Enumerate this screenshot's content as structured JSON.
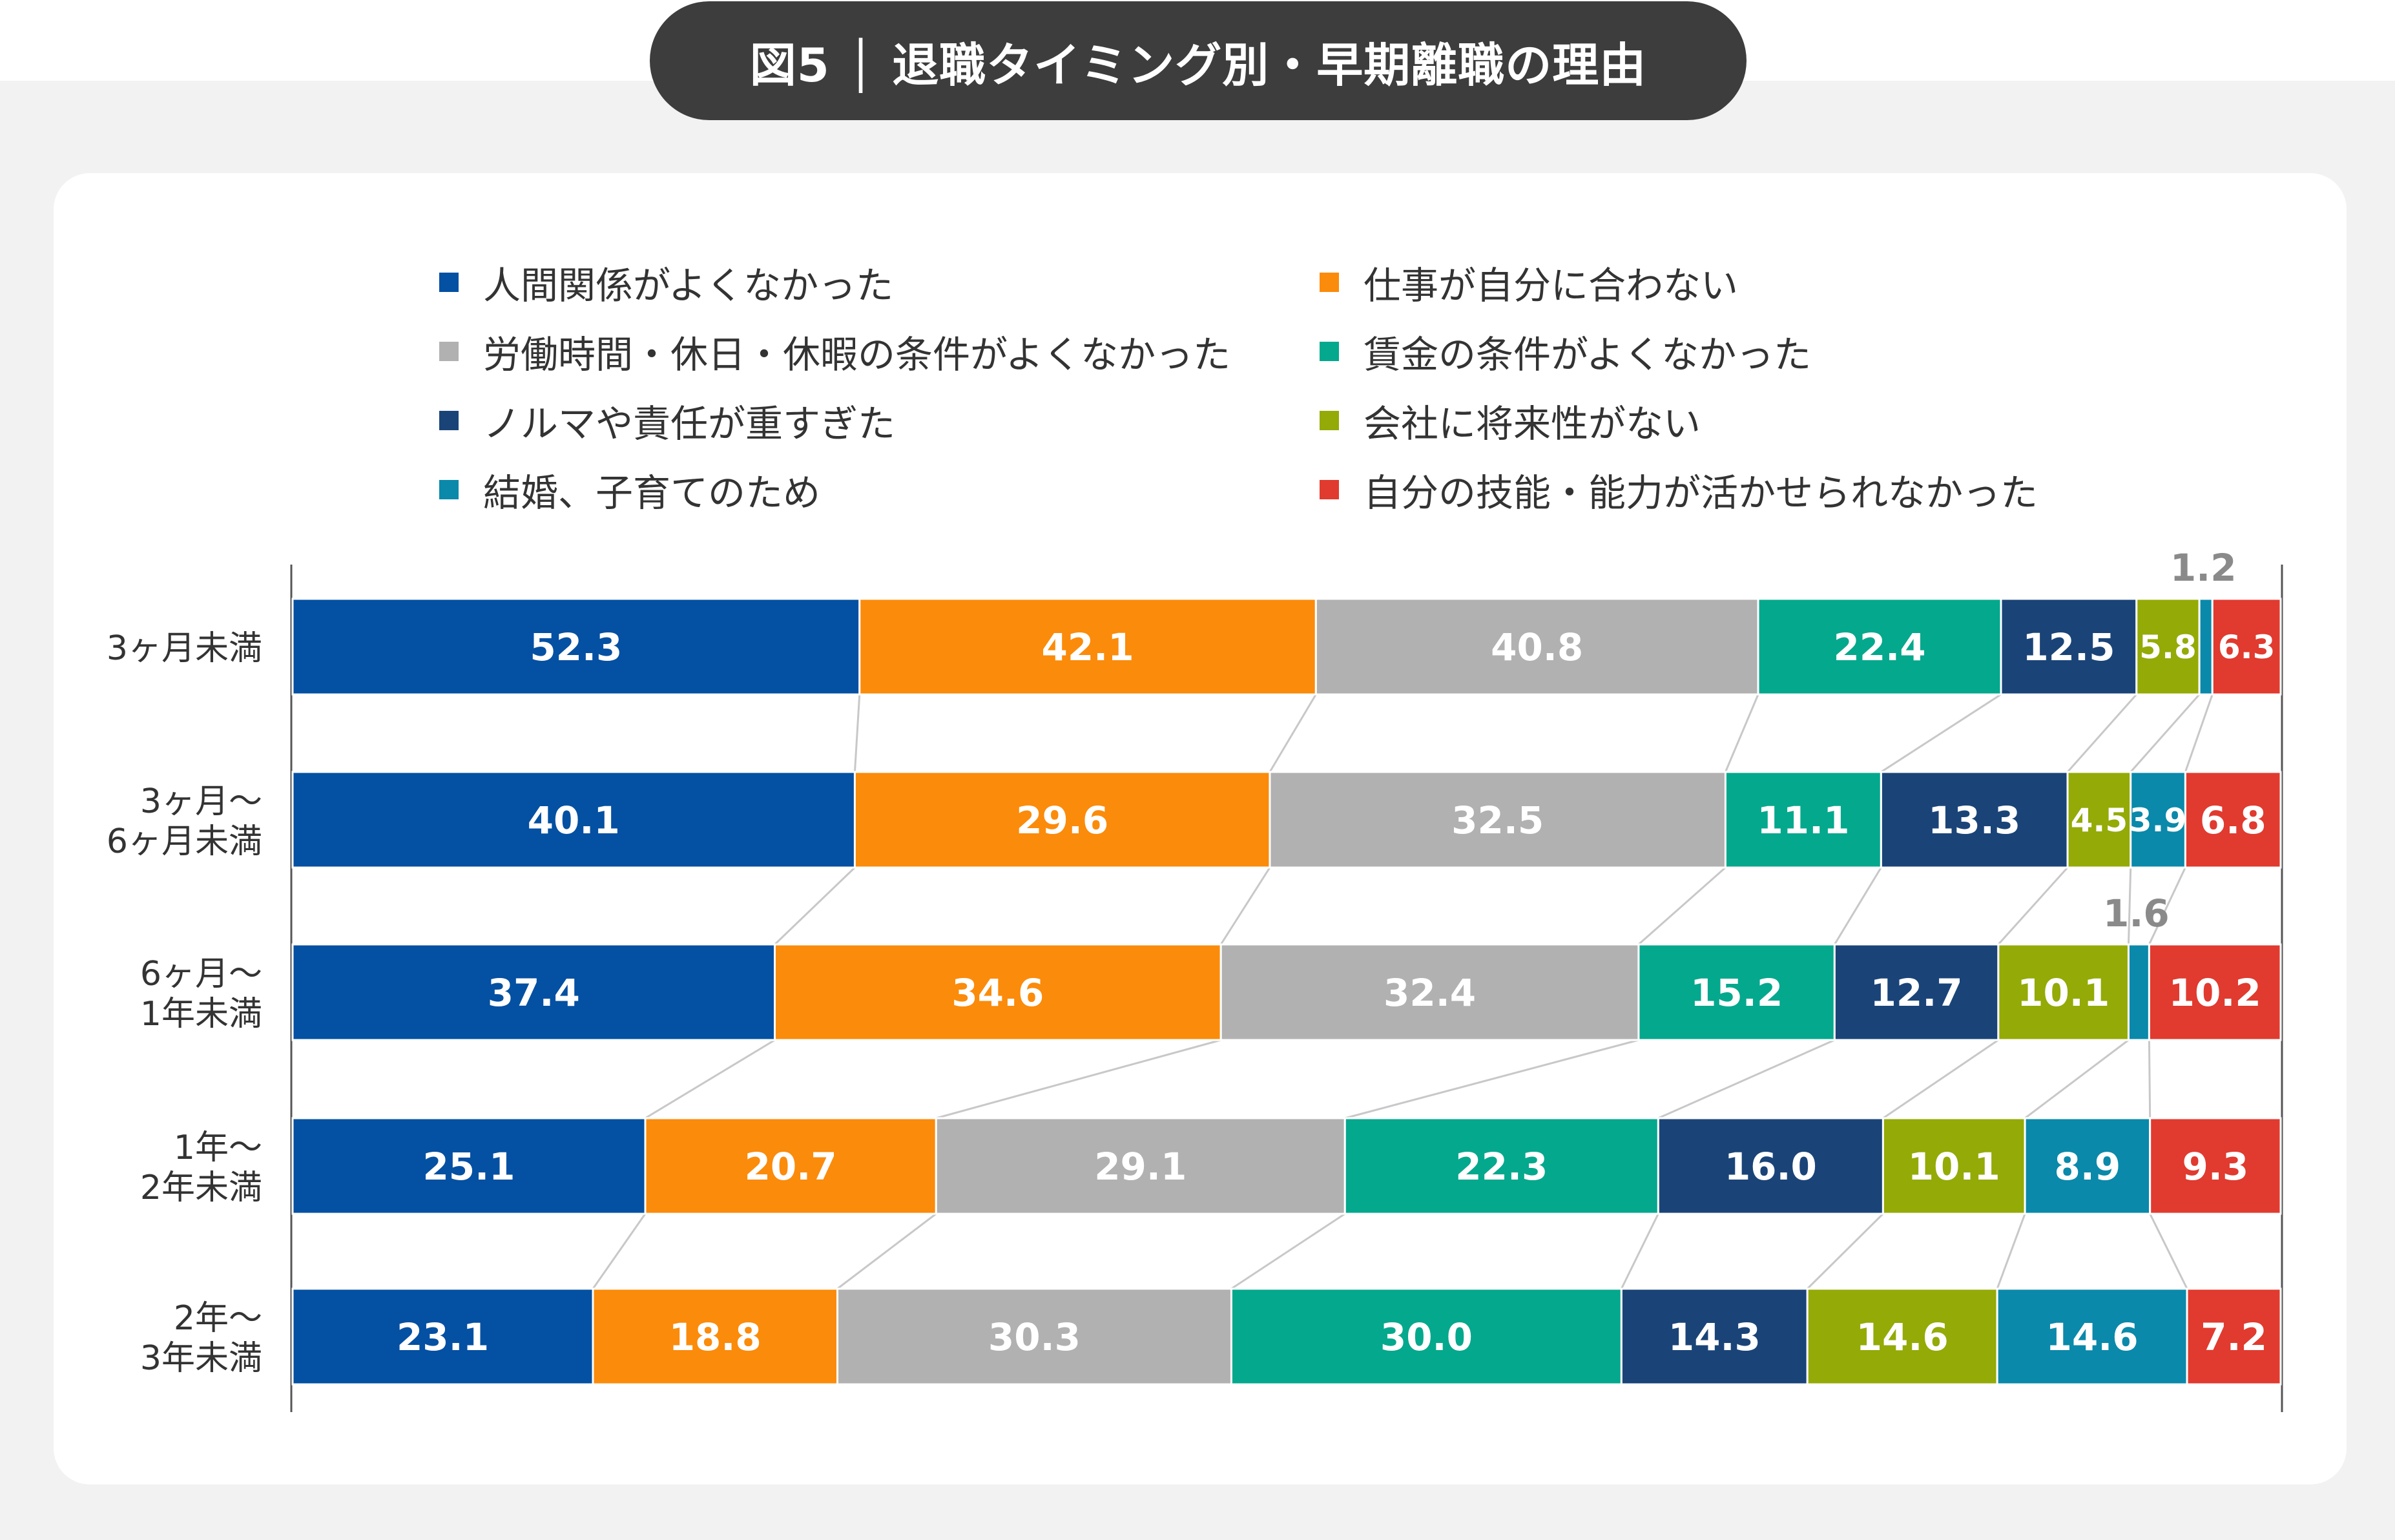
{
  "title": "図5 │ 退職タイミング別・早期離職の理由",
  "chart_data": {
    "type": "bar",
    "orientation": "horizontal-stacked",
    "categories": [
      "3ヶ月未満",
      "3ヶ月～\n6ヶ月未満",
      "6ヶ月～\n1年未満",
      "1年～\n2年未満",
      "2年～\n3年未満"
    ],
    "series": [
      {
        "name": "人間関係がよくなかった",
        "color": "#0450a2",
        "label_color": "#ffffff",
        "values": [
          52.3,
          40.1,
          37.4,
          25.1,
          23.1
        ]
      },
      {
        "name": "仕事が自分に合わない",
        "color": "#fb8b0a",
        "label_color": "#ffffff",
        "values": [
          42.1,
          29.6,
          34.6,
          20.7,
          18.8
        ]
      },
      {
        "name": "労働時間・休日・休暇の条件がよくなかった",
        "color": "#b1b1b1",
        "label_color": "#ffffff",
        "values": [
          40.8,
          32.5,
          32.4,
          29.1,
          30.3
        ]
      },
      {
        "name": "賃金の条件がよくなかった",
        "color": "#04a88d",
        "label_color": "#ffffff",
        "values": [
          22.4,
          11.1,
          15.2,
          22.3,
          30.0
        ]
      },
      {
        "name": "ノルマや責任が重すぎた",
        "color": "#1a4478",
        "label_color": "#ffffff",
        "values": [
          12.5,
          13.3,
          12.7,
          16.0,
          14.3
        ]
      },
      {
        "name": "会社に将来性がない",
        "color": "#94aa06",
        "label_color": "#ffffff",
        "values": [
          5.8,
          4.5,
          10.1,
          10.1,
          14.6
        ]
      },
      {
        "name": "結婚、子育てのため",
        "color": "#0a89aa",
        "label_color": "#ffffff",
        "values": [
          1.2,
          3.9,
          1.6,
          8.9,
          14.6
        ]
      },
      {
        "name": "自分の技能・能力が活かせられなかった",
        "color": "#e13a2f",
        "label_color": "#ffffff",
        "values": [
          6.3,
          6.8,
          10.2,
          9.3,
          7.2
        ]
      }
    ],
    "value_labels": [
      [
        "52.3",
        "42.1",
        "40.8",
        "22.4",
        "12.5",
        "5.8",
        "1.2",
        "6.3"
      ],
      [
        "40.1",
        "29.6",
        "32.5",
        "11.1",
        "13.3",
        "4.5",
        "3.9",
        "6.8"
      ],
      [
        "37.4",
        "34.6",
        "32.4",
        "15.2",
        "12.7",
        "10.1",
        "1.6",
        "10.2"
      ],
      [
        "25.1",
        "20.7",
        "29.1",
        "22.3",
        "16.0",
        "10.1",
        "8.9",
        "9.3"
      ],
      [
        "23.1",
        "18.8",
        "30.3",
        "30.0",
        "14.3",
        "14.6",
        "14.6",
        "7.2"
      ]
    ],
    "legend_position": "top",
    "connector_lines": true,
    "grid": false
  }
}
